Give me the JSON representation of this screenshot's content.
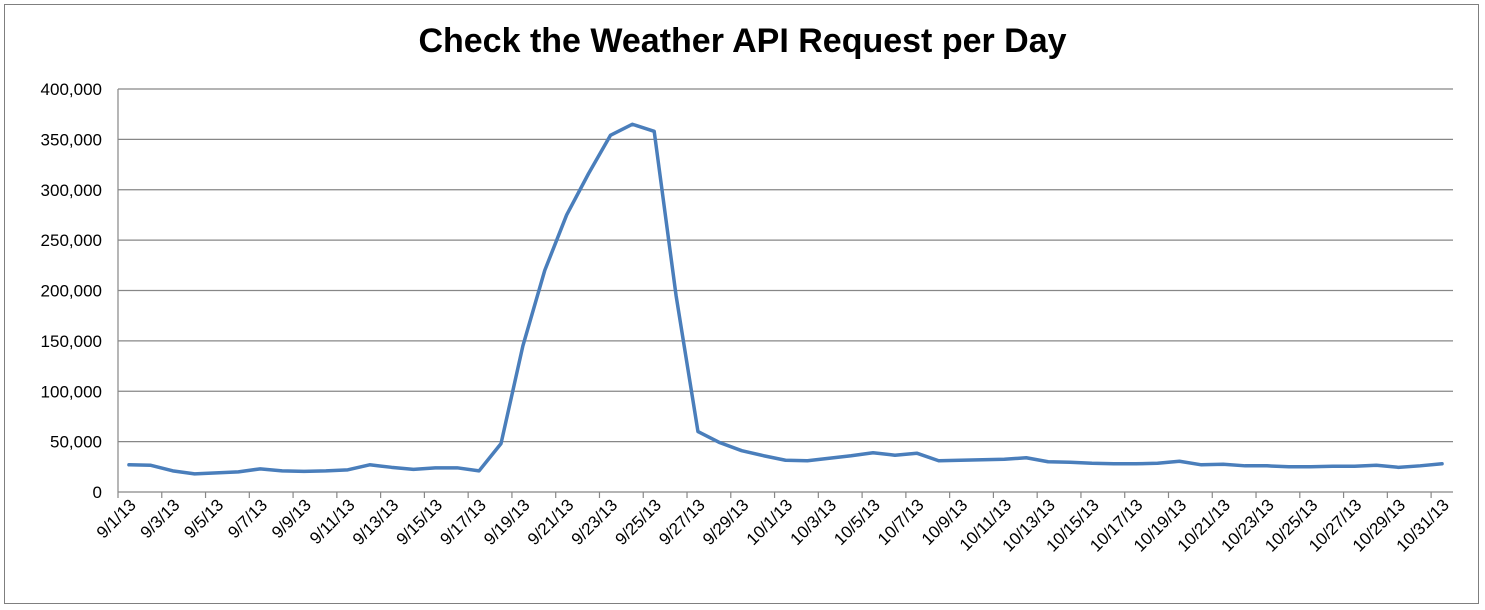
{
  "chart_data": {
    "type": "line",
    "title": "Check the Weather API Request per Day",
    "xlabel": "",
    "ylabel": "",
    "ylim": [
      0,
      400000
    ],
    "y_ticks": [
      "0",
      "50,000",
      "100,000",
      "150,000",
      "200,000",
      "250,000",
      "300,000",
      "350,000",
      "400,000"
    ],
    "x_tick_labels": [
      "9/1/13",
      "9/3/13",
      "9/5/13",
      "9/7/13",
      "9/9/13",
      "9/11/13",
      "9/13/13",
      "9/15/13",
      "9/17/13",
      "9/19/13",
      "9/21/13",
      "9/23/13",
      "9/25/13",
      "9/27/13",
      "9/29/13",
      "10/1/13",
      "10/3/13",
      "10/5/13",
      "10/7/13",
      "10/9/13",
      "10/11/13",
      "10/13/13",
      "10/15/13",
      "10/17/13",
      "10/19/13",
      "10/21/13",
      "10/23/13",
      "10/25/13",
      "10/27/13",
      "10/29/13",
      "10/31/13"
    ],
    "grid": true,
    "legend": "none",
    "line_color": "#4a7ebb",
    "series": [
      {
        "x": [
          "9/1/13",
          "9/2/13",
          "9/3/13",
          "9/4/13",
          "9/5/13",
          "9/6/13",
          "9/7/13",
          "9/8/13",
          "9/9/13",
          "9/10/13",
          "9/11/13",
          "9/12/13",
          "9/13/13",
          "9/14/13",
          "9/15/13",
          "9/16/13",
          "9/17/13",
          "9/18/13",
          "9/19/13",
          "9/20/13",
          "9/21/13",
          "9/22/13",
          "9/23/13",
          "9/24/13",
          "9/25/13",
          "9/26/13",
          "9/27/13",
          "9/28/13",
          "9/29/13",
          "9/30/13",
          "10/1/13",
          "10/2/13",
          "10/3/13",
          "10/4/13",
          "10/5/13",
          "10/6/13",
          "10/7/13",
          "10/8/13",
          "10/9/13",
          "10/10/13",
          "10/11/13",
          "10/12/13",
          "10/13/13",
          "10/14/13",
          "10/15/13",
          "10/16/13",
          "10/17/13",
          "10/18/13",
          "10/19/13",
          "10/20/13",
          "10/21/13",
          "10/22/13",
          "10/23/13",
          "10/24/13",
          "10/25/13",
          "10/26/13",
          "10/27/13",
          "10/28/13",
          "10/29/13",
          "10/30/13",
          "10/31/13"
        ],
        "values": [
          27000,
          26500,
          21000,
          18000,
          19000,
          20000,
          23000,
          21000,
          20500,
          21000,
          22000,
          27000,
          24500,
          22500,
          24000,
          24000,
          21000,
          48000,
          145000,
          220000,
          275000,
          316000,
          354000,
          365000,
          358000,
          195000,
          60000,
          49000,
          41000,
          36000,
          31500,
          31000,
          33500,
          36000,
          39000,
          36500,
          38500,
          31000,
          31500,
          32000,
          32500,
          34000,
          30000,
          29500,
          28500,
          28000,
          28000,
          28500,
          30500,
          27000,
          27500,
          26000,
          26000,
          25000,
          25000,
          25500,
          25500,
          26500,
          24500,
          26000,
          28000
        ]
      }
    ]
  }
}
